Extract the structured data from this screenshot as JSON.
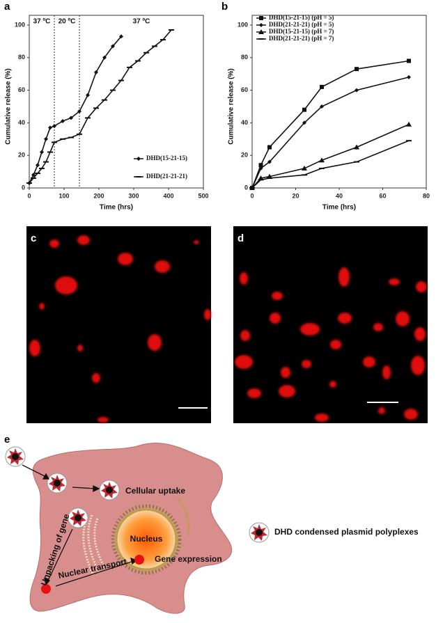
{
  "panel_labels": [
    "a",
    "b",
    "c",
    "d",
    "e"
  ],
  "chart_data": [
    {
      "type": "line",
      "xlabel": "Time (hrs)",
      "ylabel": "Cumulative release (%)",
      "xlim": [
        0,
        500
      ],
      "xticks": [
        0,
        100,
        200,
        300,
        400,
        500
      ],
      "ylim": [
        0,
        100
      ],
      "yticks": [
        0,
        20,
        40,
        60,
        80,
        100
      ],
      "legend": "lower right",
      "vlines": [
        72,
        144
      ],
      "annotations": [
        "37 ºC",
        "20 ºC",
        "37 ºC"
      ],
      "series": [
        {
          "name": "DHD(15-21-15)",
          "color": "#111111",
          "marker": "diamond",
          "x": [
            0,
            12,
            24,
            36,
            48,
            60,
            72,
            96,
            120,
            144,
            168,
            192,
            216,
            240,
            264
          ],
          "values": [
            3,
            8,
            14,
            22,
            30,
            37,
            38,
            41,
            43,
            47,
            57,
            71,
            80,
            87,
            93
          ]
        },
        {
          "name": "DHD(21-21-21)",
          "color": "#111111",
          "marker": "dash",
          "x": [
            0,
            12,
            24,
            36,
            48,
            60,
            72,
            96,
            120,
            144,
            168,
            192,
            216,
            240,
            264,
            288,
            312,
            336,
            360,
            384,
            408
          ],
          "values": [
            3,
            6,
            9,
            12,
            16,
            22,
            28,
            30,
            31,
            33,
            43,
            49,
            54,
            60,
            66,
            74,
            78,
            83,
            87,
            91,
            97
          ]
        }
      ]
    },
    {
      "type": "line",
      "xlabel": "Time (hrs)",
      "ylabel": "Cumulative release (%)",
      "xlim": [
        0,
        80
      ],
      "xticks": [
        0,
        20,
        40,
        60,
        80
      ],
      "ylim": [
        0,
        100
      ],
      "yticks": [
        0,
        20,
        40,
        60,
        80,
        100
      ],
      "legend": "upper left",
      "x": [
        0,
        4,
        8,
        24,
        32,
        48,
        72
      ],
      "series": [
        {
          "name": "DHD(15-21-15) (pH = 5)",
          "color": "#111111",
          "marker": "square",
          "values": [
            0,
            14,
            25,
            48,
            62,
            73,
            78
          ]
        },
        {
          "name": "DHD(21-21-21) (pH = 5)",
          "color": "#111111",
          "marker": "diamond",
          "values": [
            0,
            12,
            16,
            40,
            50,
            60,
            68
          ]
        },
        {
          "name": "DHD(15-21-15) (pH = 7)",
          "color": "#111111",
          "marker": "triangle",
          "values": [
            0,
            6,
            7,
            12,
            17,
            25,
            39
          ]
        },
        {
          "name": "DHD(21-21-21) (pH = 7)",
          "color": "#111111",
          "marker": "dash",
          "values": [
            0,
            5,
            6,
            8,
            12,
            16,
            29
          ]
        }
      ]
    }
  ],
  "diagram": {
    "cellular_uptake": "Cellular uptake",
    "nucleus": "Nucleus",
    "gene_expression": "Gene expression",
    "unpacking": "Unpacking of gene",
    "nuclear_transport": "Nuclear transport",
    "legend": "DHD condensed plasmid polyplexes"
  }
}
